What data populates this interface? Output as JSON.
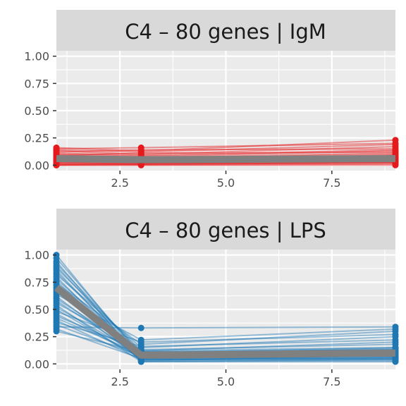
{
  "chart_data": [
    {
      "type": "line",
      "title": "C4 – 80 genes | IgM",
      "xlabel": "",
      "ylabel": "",
      "x": [
        1,
        3,
        9
      ],
      "xlim": [
        1,
        9
      ],
      "ylim": [
        0,
        1
      ],
      "x_ticks": [
        "2.5",
        "5.0",
        "7.5"
      ],
      "y_ticks": [
        "0.00",
        "0.25",
        "0.50",
        "0.75",
        "1.00"
      ],
      "grid": true,
      "series_color": "#e41a1c",
      "mean_color": "#808080",
      "series": [
        {
          "values": [
            0.16,
            0.13,
            0.23
          ]
        },
        {
          "values": [
            0.15,
            0.16,
            0.2
          ]
        },
        {
          "values": [
            0.14,
            0.12,
            0.19
          ]
        },
        {
          "values": [
            0.13,
            0.1,
            0.17
          ]
        },
        {
          "values": [
            0.12,
            0.14,
            0.15
          ]
        },
        {
          "values": [
            0.11,
            0.09,
            0.14
          ]
        },
        {
          "values": [
            0.1,
            0.08,
            0.13
          ]
        },
        {
          "values": [
            0.09,
            0.11,
            0.12
          ]
        },
        {
          "values": [
            0.08,
            0.07,
            0.11
          ]
        },
        {
          "values": [
            0.08,
            0.06,
            0.1
          ]
        },
        {
          "values": [
            0.07,
            0.05,
            0.09
          ]
        },
        {
          "values": [
            0.06,
            0.06,
            0.08
          ]
        },
        {
          "values": [
            0.05,
            0.04,
            0.08
          ]
        },
        {
          "values": [
            0.05,
            0.03,
            0.07
          ]
        },
        {
          "values": [
            0.04,
            0.05,
            0.06
          ]
        },
        {
          "values": [
            0.04,
            0.03,
            0.05
          ]
        },
        {
          "values": [
            0.03,
            0.02,
            0.05
          ]
        },
        {
          "values": [
            0.02,
            0.04,
            0.04
          ]
        },
        {
          "values": [
            0.02,
            0.01,
            0.03
          ]
        },
        {
          "values": [
            0.01,
            0.02,
            0.03
          ]
        },
        {
          "values": [
            0.01,
            0.01,
            0.02
          ]
        },
        {
          "values": [
            0.0,
            0.01,
            0.02
          ]
        },
        {
          "values": [
            0.0,
            0.0,
            0.01
          ]
        },
        {
          "values": [
            0.0,
            0.0,
            0.0
          ]
        }
      ],
      "mean": [
        0.06,
        0.05,
        0.06
      ]
    },
    {
      "type": "line",
      "title": "C4 – 80 genes | LPS",
      "xlabel": "",
      "ylabel": "",
      "x": [
        1,
        3,
        9
      ],
      "xlim": [
        1,
        9
      ],
      "ylim": [
        0,
        1
      ],
      "x_ticks": [
        "2.5",
        "5.0",
        "7.5"
      ],
      "y_ticks": [
        "0.00",
        "0.25",
        "0.50",
        "0.75",
        "1.00"
      ],
      "grid": true,
      "series_color": "#1f78b4",
      "mean_color": "#808080",
      "series": [
        {
          "values": [
            1.0,
            0.05,
            0.1
          ]
        },
        {
          "values": [
            0.97,
            0.08,
            0.12
          ]
        },
        {
          "values": [
            0.94,
            0.03,
            0.08
          ]
        },
        {
          "values": [
            0.92,
            0.1,
            0.15
          ]
        },
        {
          "values": [
            0.9,
            0.06,
            0.07
          ]
        },
        {
          "values": [
            0.88,
            0.12,
            0.2
          ]
        },
        {
          "values": [
            0.86,
            0.04,
            0.05
          ]
        },
        {
          "values": [
            0.84,
            0.07,
            0.11
          ]
        },
        {
          "values": [
            0.82,
            0.15,
            0.25
          ]
        },
        {
          "values": [
            0.8,
            0.02,
            0.04
          ]
        },
        {
          "values": [
            0.78,
            0.09,
            0.14
          ]
        },
        {
          "values": [
            0.76,
            0.05,
            0.06
          ]
        },
        {
          "values": [
            0.74,
            0.18,
            0.3
          ]
        },
        {
          "values": [
            0.72,
            0.08,
            0.09
          ]
        },
        {
          "values": [
            0.7,
            0.03,
            0.03
          ]
        },
        {
          "values": [
            0.68,
            0.11,
            0.13
          ]
        },
        {
          "values": [
            0.66,
            0.06,
            0.08
          ]
        },
        {
          "values": [
            0.64,
            0.22,
            0.32
          ]
        },
        {
          "values": [
            0.62,
            0.04,
            0.05
          ]
        },
        {
          "values": [
            0.6,
            0.1,
            0.12
          ]
        },
        {
          "values": [
            0.58,
            0.07,
            0.1
          ]
        },
        {
          "values": [
            0.56,
            0.13,
            0.18
          ]
        },
        {
          "values": [
            0.54,
            0.02,
            0.02
          ]
        },
        {
          "values": [
            0.52,
            0.08,
            0.07
          ]
        },
        {
          "values": [
            0.5,
            0.05,
            0.09
          ]
        },
        {
          "values": [
            0.48,
            0.2,
            0.27
          ]
        },
        {
          "values": [
            0.46,
            0.06,
            0.06
          ]
        },
        {
          "values": [
            0.44,
            0.12,
            0.15
          ]
        },
        {
          "values": [
            0.42,
            0.09,
            0.11
          ]
        },
        {
          "values": [
            0.4,
            0.04,
            0.04
          ]
        },
        {
          "values": [
            0.38,
            0.16,
            0.22
          ]
        },
        {
          "values": [
            0.36,
            0.07,
            0.08
          ]
        },
        {
          "values": [
            0.34,
            0.33,
            0.34
          ]
        },
        {
          "values": [
            0.32,
            0.05,
            0.05
          ]
        },
        {
          "values": [
            0.3,
            0.11,
            0.13
          ]
        }
      ],
      "mean": [
        0.7,
        0.08,
        0.1
      ]
    }
  ]
}
